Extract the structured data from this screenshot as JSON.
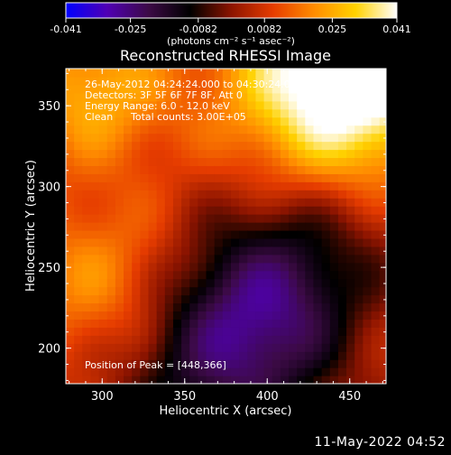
{
  "chart_data": {
    "type": "heatmap",
    "title": "Reconstructed RHESSI Image",
    "xlabel": "Heliocentric X (arcsec)",
    "ylabel": "Heliocentric Y (arcsec)",
    "xlim": [
      278,
      472
    ],
    "ylim": [
      178,
      373
    ],
    "x_ticks": [
      300,
      350,
      400,
      450
    ],
    "y_ticks": [
      200,
      250,
      300,
      350
    ],
    "colorbar": {
      "range": [
        -0.041,
        0.041
      ],
      "ticks": [
        "-0.041",
        "-0.025",
        "-0.0082",
        "0.0082",
        "0.025",
        "0.041"
      ],
      "tick_values": [
        -0.041,
        -0.025,
        -0.0082,
        0.0082,
        0.025,
        0.041
      ],
      "unit_label": "(photons cm⁻² s⁻¹ asec⁻²)",
      "colormap": [
        "#0000ff",
        "#5000b4",
        "#3c0a46",
        "#000000",
        "#8c1400",
        "#e63c00",
        "#ff8c00",
        "#ffd200",
        "#ffffff"
      ]
    },
    "annotations": {
      "time_range": "26-May-2012 04:24:24.000 to 04:30:24.000",
      "detectors": "Detectors: 3F 5F 6F 7F 8F, Att 0",
      "energy_range": "Energy Range: 6.0 - 12.0 keV",
      "clean_label": "Clean",
      "total_counts": "Total counts: 3.00E+05",
      "peak_position": "Position of Peak = [448,366]"
    },
    "peak": {
      "x": 448,
      "y": 366
    },
    "minimum_region": {
      "x": 400,
      "y": 222
    }
  },
  "footer": {
    "date_stamp": "11-May-2022 04:52"
  }
}
